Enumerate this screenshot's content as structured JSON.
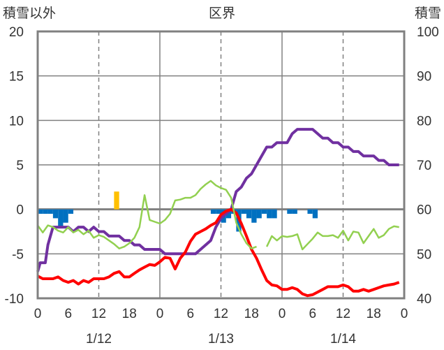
{
  "chart_data": {
    "type": "line",
    "title": "区界",
    "left_axis_label": "積雪以外",
    "right_axis_label": "積雪",
    "ylim": [
      -10,
      20
    ],
    "y2lim": [
      40,
      100
    ],
    "y_ticks": [
      "20",
      "15",
      "10",
      "5",
      "0",
      "-5",
      "-10"
    ],
    "y2_ticks": [
      "100",
      "90",
      "80",
      "70",
      "60",
      "50",
      "40"
    ],
    "x_ticks": [
      "0",
      "6",
      "12",
      "18",
      "0",
      "6",
      "12",
      "18",
      "0",
      "6",
      "12",
      "18",
      "0"
    ],
    "dates": [
      "1/12",
      "1/13",
      "1/14"
    ],
    "xlim": [
      0,
      72
    ],
    "grid": true,
    "colors": {
      "snow_depth": "#7030a0",
      "temperature": "#ff0000",
      "green_series": "#92d050",
      "precipitation_bars": "#0070c0",
      "yellow_bars": "#ffc000",
      "axis": "#808080"
    },
    "series": [
      {
        "axis": "right",
        "color": "#7030a0",
        "x": [
          0,
          0.5,
          1,
          1.5,
          2,
          3,
          4,
          5,
          6,
          7,
          8,
          9,
          10,
          11,
          12,
          13,
          14,
          15,
          16,
          17,
          18,
          19,
          20,
          21,
          22,
          23,
          24,
          25,
          26,
          27,
          28,
          29,
          30,
          31,
          32,
          33,
          34,
          35,
          36,
          37,
          38,
          39,
          40,
          41,
          42,
          43,
          44,
          45,
          46,
          47,
          48,
          49,
          50,
          51,
          52,
          53,
          54,
          55,
          56,
          57,
          58,
          59,
          60,
          61,
          62,
          63,
          64,
          65,
          66,
          67,
          68,
          69,
          70,
          71
        ],
        "values": [
          46,
          48,
          48,
          48,
          52,
          56,
          56,
          56,
          56,
          55,
          56,
          56,
          55,
          56,
          55,
          55,
          54,
          54,
          54,
          53,
          53,
          52,
          52,
          51,
          51,
          51,
          51,
          50,
          50,
          50,
          50,
          50,
          50,
          50,
          51,
          52,
          53,
          56,
          58,
          59,
          60,
          64,
          65,
          67,
          68,
          70,
          72,
          74,
          74,
          75,
          75,
          75,
          77,
          78,
          78,
          78,
          78,
          77,
          76,
          76,
          75,
          75,
          74,
          74,
          73,
          73,
          72,
          72,
          72,
          71,
          71,
          70,
          70,
          70
        ]
      },
      {
        "axis": "left",
        "color": "#ff0000",
        "x": [
          0,
          1,
          2,
          3,
          4,
          5,
          6,
          7,
          8,
          9,
          10,
          11,
          12,
          13,
          14,
          15,
          16,
          17,
          18,
          19,
          20,
          21,
          22,
          23,
          24,
          25,
          26,
          27,
          28,
          29,
          30,
          31,
          32,
          33,
          34,
          35,
          36,
          37,
          38,
          39,
          40,
          41,
          42,
          43,
          44,
          45,
          46,
          47,
          48,
          49,
          50,
          51,
          52,
          53,
          54,
          55,
          56,
          57,
          58,
          59,
          60,
          61,
          62,
          63,
          64,
          65,
          66,
          67,
          68,
          69,
          70,
          71
        ],
        "values": [
          -7.5,
          -7.8,
          -7.8,
          -7.8,
          -7.6,
          -8,
          -8.2,
          -8,
          -8.4,
          -8,
          -8.2,
          -7.8,
          -7.8,
          -7.8,
          -7.6,
          -7.2,
          -7.0,
          -7.6,
          -7.6,
          -7.2,
          -6.8,
          -6.5,
          -6.2,
          -6.3,
          -5.9,
          -5.4,
          -5.5,
          -6.7,
          -5.5,
          -4.8,
          -3.6,
          -2.8,
          -2.5,
          -2.2,
          -1.8,
          -1.5,
          -0.6,
          -0.2,
          0,
          -0.4,
          -1.6,
          -3,
          -4.5,
          -5.5,
          -6.8,
          -8,
          -8.5,
          -8.6,
          -9,
          -9,
          -8.8,
          -9,
          -9.5,
          -9.7,
          -9.6,
          -9.3,
          -9,
          -8.7,
          -8.7,
          -8.7,
          -8.5,
          -8.7,
          -9.2,
          -9.2,
          -9,
          -9.2,
          -9,
          -8.8,
          -8.6,
          -8.5,
          -8.4,
          -8.2
        ]
      },
      {
        "axis": "left",
        "color": "#92d050",
        "x": [
          0,
          1,
          2,
          3,
          4,
          5,
          6,
          7,
          8,
          9,
          10,
          11,
          12,
          13,
          14,
          15,
          16,
          17,
          18,
          19,
          20,
          21,
          22,
          23,
          24,
          25,
          26,
          27,
          28,
          29,
          30,
          31,
          32,
          33,
          34,
          35,
          36,
          37,
          38,
          39,
          40,
          41,
          42,
          43,
          44,
          45,
          46,
          47,
          48,
          49,
          50,
          51,
          52,
          53,
          54,
          55,
          56,
          57,
          58,
          59,
          60,
          61,
          62,
          63,
          64,
          65,
          66,
          67,
          68,
          69,
          70,
          71
        ],
        "values": [
          -1.8,
          -2.6,
          -1.8,
          -2.0,
          -2.4,
          -2.6,
          -2.0,
          -2.6,
          -2.3,
          -2.8,
          -2.4,
          -3.2,
          -2.9,
          -3.1,
          -3.5,
          -3.9,
          -4.4,
          -4.2,
          -3.8,
          -3.2,
          -2,
          1.6,
          -1.2,
          -1.4,
          -1.6,
          -1.2,
          -0.5,
          1.0,
          1.1,
          1.3,
          1.3,
          1.6,
          2.3,
          2.8,
          3.2,
          2.7,
          2.4,
          2.2,
          1.3,
          -1.5,
          -2.8,
          -3.8,
          -4.4,
          -4.2,
          null,
          -4.2,
          -3,
          -3.5,
          -3.0,
          -3.1,
          -3.0,
          -2.8,
          -4.5,
          -3.9,
          -3.3,
          -2.6,
          -3,
          -3,
          -2.9,
          -3.2,
          -2.4,
          -3.5,
          -2.5,
          -2.6,
          -3.8,
          -3,
          -2.2,
          -3.2,
          -2.9,
          -2.2,
          -1.9,
          -2.0
        ]
      }
    ],
    "bars": [
      {
        "axis": "left",
        "color": "#0070c0",
        "x": [
          0,
          1,
          2,
          3,
          4,
          5,
          6,
          7,
          8,
          9,
          10,
          11,
          12,
          13,
          14,
          15,
          16,
          17,
          18,
          19,
          20,
          21,
          22,
          23,
          24,
          25,
          26,
          27,
          28,
          29,
          30,
          31,
          32,
          33,
          34,
          35,
          36,
          37,
          38,
          39,
          40,
          41,
          42,
          43,
          44,
          45,
          46,
          47,
          48,
          49,
          50,
          51,
          52,
          53,
          54,
          55,
          56,
          57,
          58,
          59,
          60,
          61,
          62,
          63,
          64,
          65,
          66,
          67,
          68,
          69,
          70,
          71
        ],
        "values": [
          -0.5,
          -0.5,
          -0.5,
          -1,
          -1.9,
          -1.5,
          -0.5,
          0,
          0,
          0,
          0,
          0,
          0,
          0,
          0,
          0,
          0,
          0,
          0,
          0,
          0,
          0,
          0,
          0,
          0,
          0,
          0,
          0,
          0,
          0,
          0,
          0,
          0,
          0,
          -0.5,
          -0.5,
          -1.5,
          -1.0,
          -0.5,
          -2.5,
          -0.5,
          -1.0,
          -1.5,
          -1.0,
          -0.5,
          -1.0,
          -1.0,
          0,
          0,
          -0.5,
          -0.5,
          0,
          0,
          -0.5,
          -1.0,
          0,
          0,
          0,
          0,
          0,
          0,
          0,
          0,
          0,
          0,
          0,
          0,
          0,
          0,
          0,
          0,
          0
        ]
      },
      {
        "axis": "left",
        "color": "#ffc000",
        "x": [
          15
        ],
        "values": [
          2
        ]
      }
    ]
  }
}
